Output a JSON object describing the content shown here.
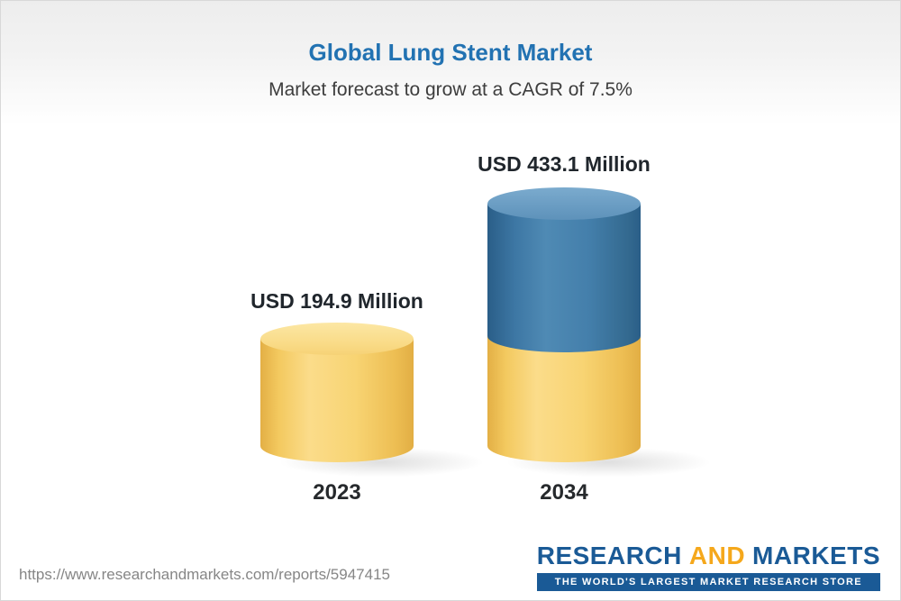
{
  "chart_data": {
    "type": "bar",
    "title": "Global Lung Stent Market",
    "subtitle": "Market forecast to grow at a CAGR of 7.5%",
    "categories": [
      "2023",
      "2034"
    ],
    "values": [
      194.9,
      433.1
    ],
    "unit": "USD Million",
    "value_labels": [
      "USD 194.9 Million",
      "USD 433.1 Million"
    ],
    "cagr_percent": 7.5,
    "bar_style": "3d-cylinder",
    "ylim": [
      0,
      450
    ],
    "grid": false,
    "legend": false,
    "series_note": "2034 bar shows blue growth segment stacked above yellow base equal to 2023 value"
  },
  "footer": {
    "url": "https://www.researchandmarkets.com/reports/5947415",
    "logo": {
      "research": "RESEARCH",
      "and": "AND",
      "markets": "MARKETS",
      "tagline": "THE WORLD'S LARGEST MARKET RESEARCH STORE"
    }
  },
  "colors": {
    "title_blue": "#2272b2",
    "subtitle_gray": "#3d3d3d",
    "bar_yellow": "#f6cf6b",
    "bar_yellow_cap": "#f9da85",
    "bar_blue": "#3d77a4",
    "bar_blue_cap": "#6699c0",
    "logo_blue": "#1a5a96",
    "logo_orange": "#f5a81c",
    "url_gray": "#868686"
  }
}
